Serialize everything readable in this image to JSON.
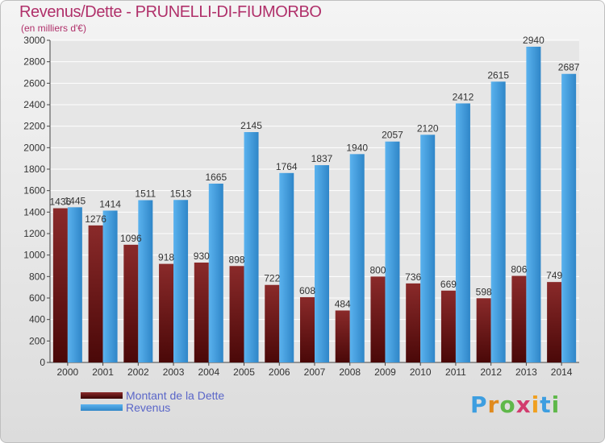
{
  "header": {
    "title": "Revenus/Dette - PRUNELLI-DI-FIUMORBO",
    "subtitle": "(en milliers d'€)"
  },
  "colors": {
    "title": "#b0306a",
    "dette": "#7b2020",
    "revenus": "#3d9ee0",
    "grid": "#ffffff",
    "legend_text": "#5a66c8"
  },
  "legend": [
    {
      "label": "Montant de la Dette",
      "color": "#6b1010"
    },
    {
      "label": "Revenus",
      "color": "#3d9ee0"
    }
  ],
  "logo": {
    "letters": [
      "P",
      "r",
      "o",
      "x",
      "i",
      "t",
      "i"
    ],
    "colors": [
      "#3d9ee0",
      "#e08a1e",
      "#5fb84a",
      "#d23c6e",
      "#f0a020",
      "#3d9ee0",
      "#5fb84a"
    ]
  },
  "chart_data": {
    "type": "bar",
    "title": "Revenus/Dette - PRUNELLI-DI-FIUMORBO",
    "subtitle": "(en milliers d'€)",
    "xlabel": "",
    "ylabel": "",
    "categories": [
      "2000",
      "2001",
      "2002",
      "2003",
      "2004",
      "2005",
      "2006",
      "2007",
      "2008",
      "2009",
      "2010",
      "2011",
      "2012",
      "2013",
      "2014"
    ],
    "series": [
      {
        "name": "Montant de la Dette",
        "values": [
          1436,
          1276,
          1096,
          918,
          930,
          898,
          722,
          608,
          484,
          800,
          736,
          669,
          598,
          806,
          749
        ]
      },
      {
        "name": "Revenus",
        "values": [
          1445,
          1414,
          1511,
          1513,
          1665,
          2145,
          1764,
          1837,
          1940,
          2057,
          2120,
          2412,
          2615,
          2940,
          2687
        ]
      }
    ],
    "ylim": [
      0,
      3000
    ],
    "yticks": [
      0,
      200,
      400,
      600,
      800,
      1000,
      1200,
      1400,
      1600,
      1800,
      2000,
      2200,
      2400,
      2600,
      2800,
      3000
    ],
    "grid": true,
    "legend_position": "bottom-left"
  }
}
